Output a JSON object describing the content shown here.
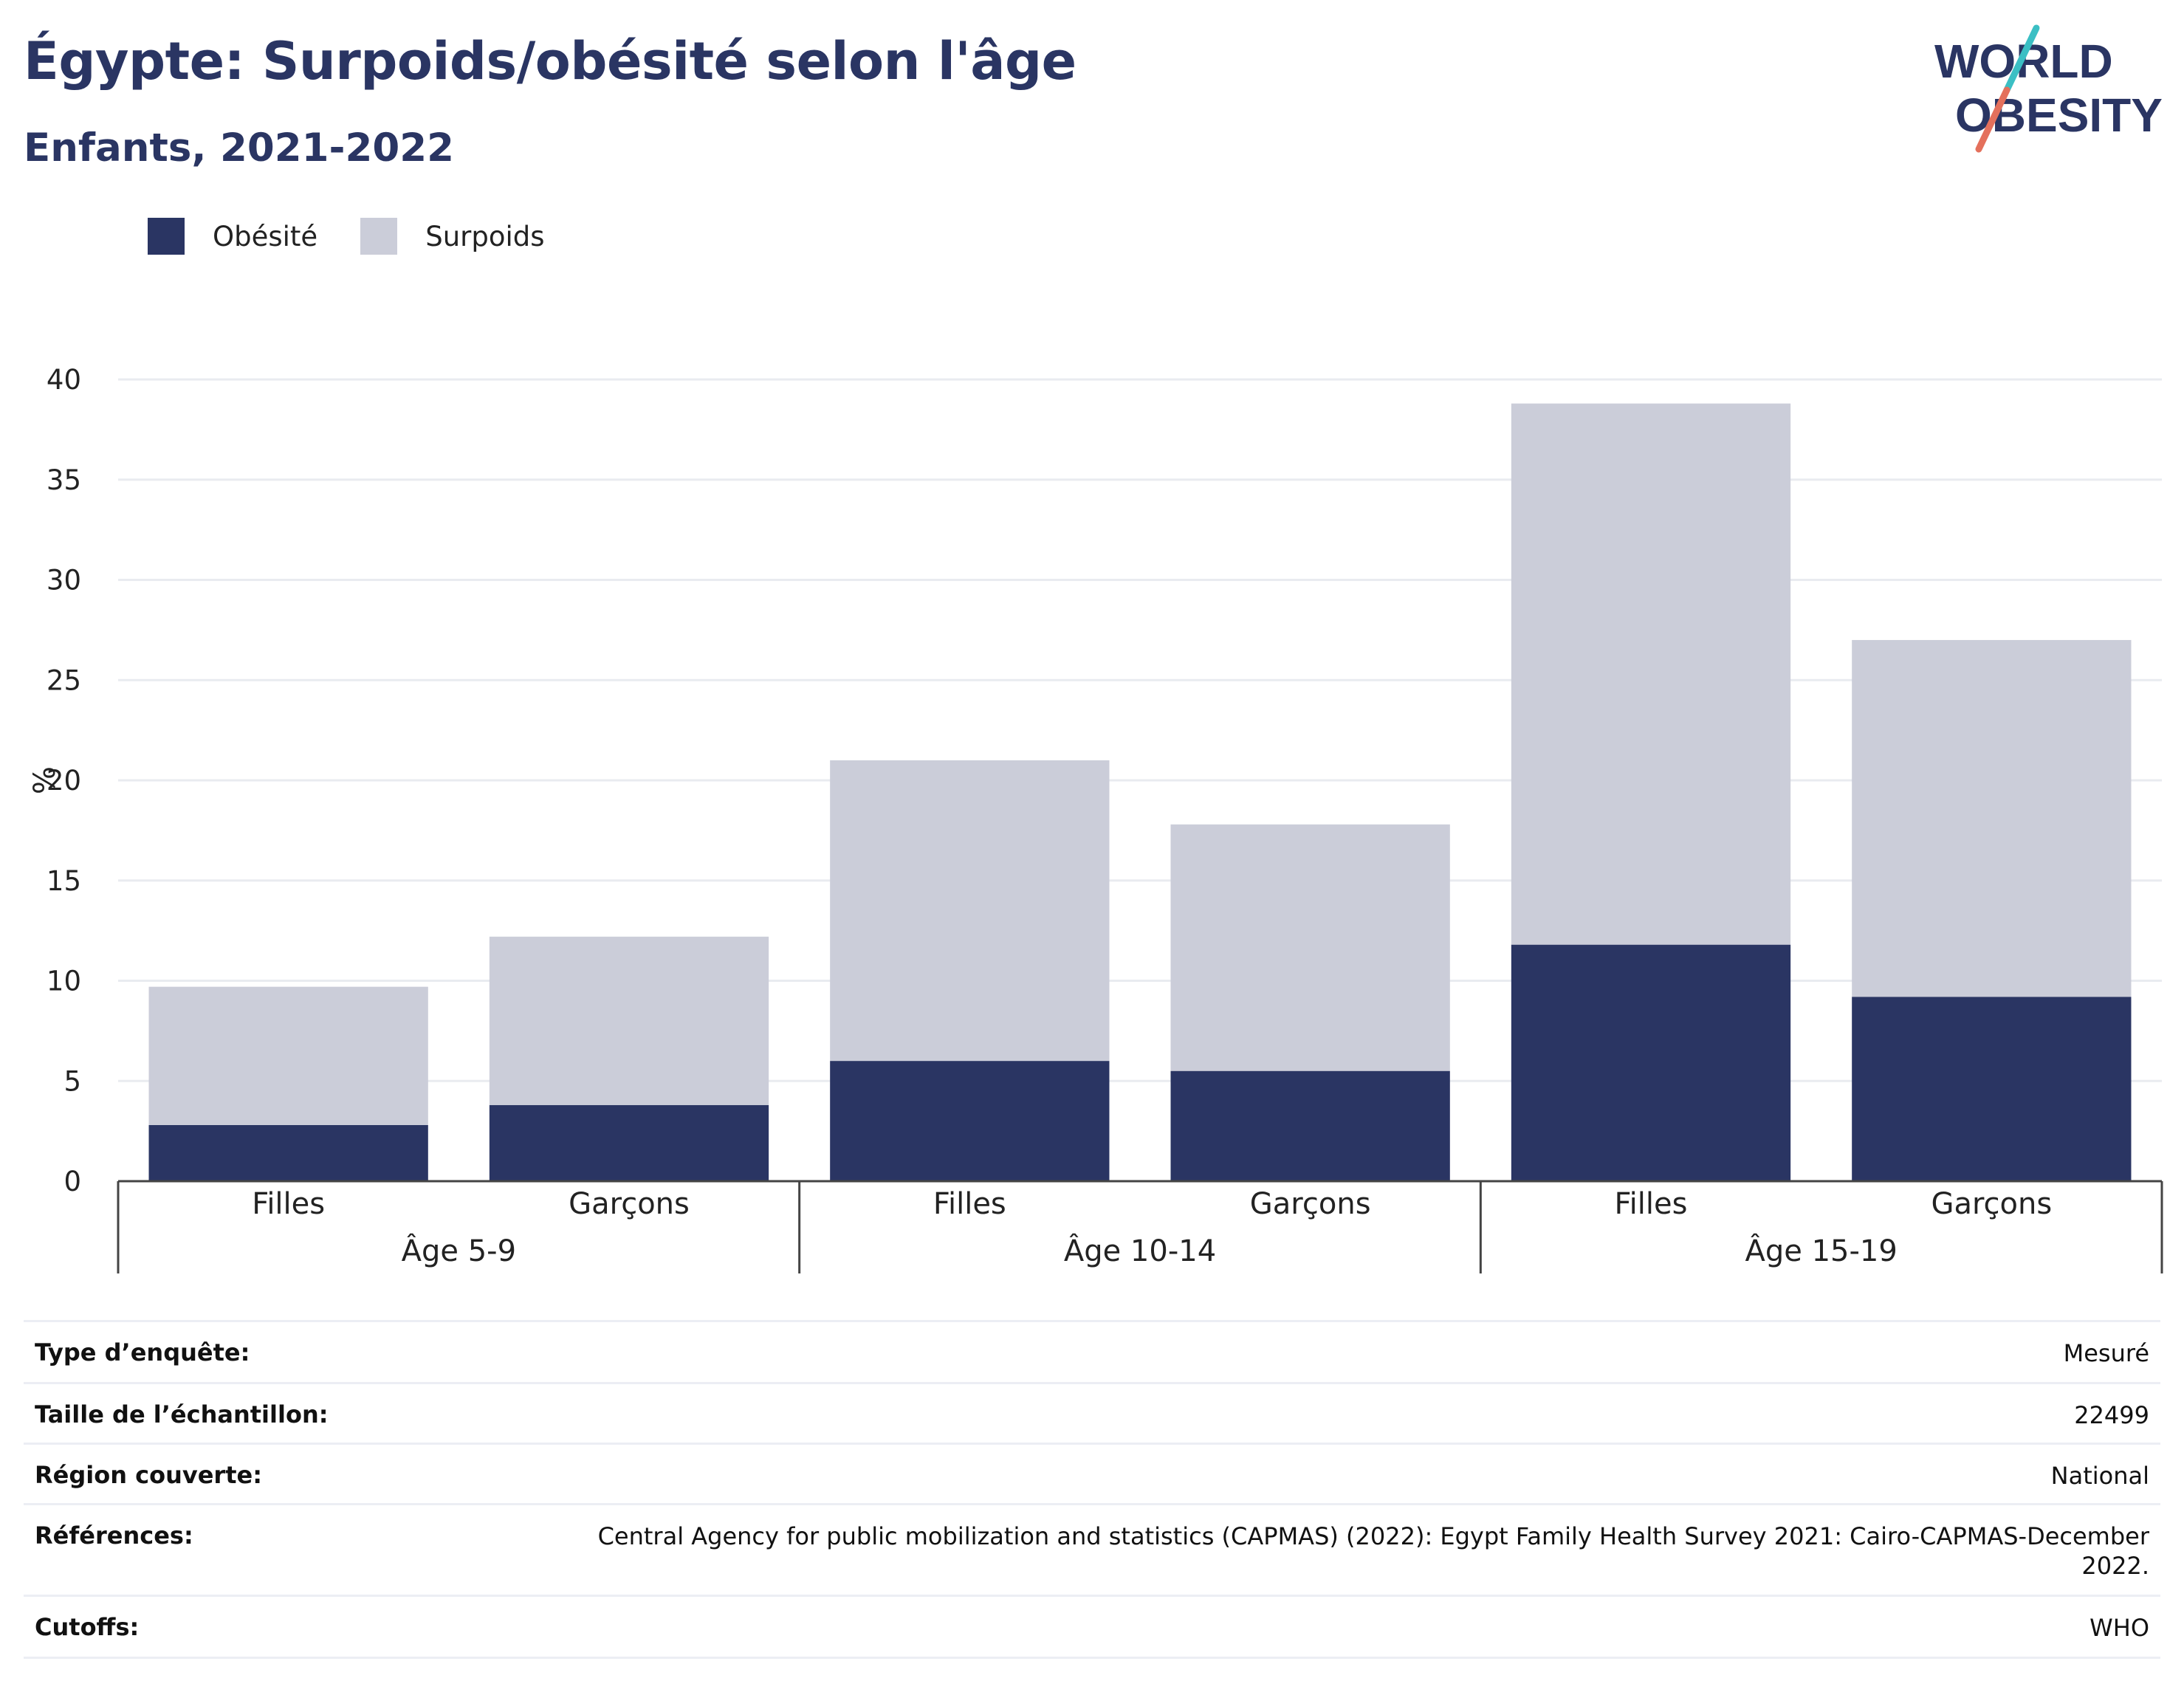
{
  "header": {
    "title": "Égypte: Surpoids/obésité selon l'âge",
    "subtitle": "Enfants, 2021-2022",
    "logo_line1": "WORLD",
    "logo_line2": "OBESITY"
  },
  "colors": {
    "obesity": "#2a3563",
    "overweight": "#cbcdd9",
    "text": "#2a3563",
    "logo_teal": "#3bbfc4",
    "logo_coral": "#e4705c"
  },
  "legend": [
    {
      "label": "Obésité",
      "color": "#2a3563"
    },
    {
      "label": "Surpoids",
      "color": "#cbcdd9"
    }
  ],
  "chart_data": {
    "type": "bar",
    "stacked": true,
    "ylabel": "%",
    "ylim": [
      0,
      40
    ],
    "yticks": [
      0,
      5,
      10,
      15,
      20,
      25,
      30,
      35,
      40
    ],
    "grid": true,
    "legend_position": "top-left",
    "groups": [
      "Âge 5-9",
      "Âge 10-14",
      "Âge 15-19"
    ],
    "categories": [
      "Filles",
      "Garçons",
      "Filles",
      "Garçons",
      "Filles",
      "Garçons"
    ],
    "series": [
      {
        "name": "Obésité",
        "values": [
          2.8,
          3.8,
          6.0,
          5.5,
          11.8,
          9.2
        ]
      },
      {
        "name": "Surpoids",
        "values": [
          6.9,
          8.4,
          15.0,
          12.3,
          27.0,
          17.8
        ]
      }
    ]
  },
  "meta": [
    {
      "key": "Type d’enquête:",
      "value": "Mesuré"
    },
    {
      "key": "Taille de l’échantillon:",
      "value": "22499"
    },
    {
      "key": "Région couverte:",
      "value": "National"
    },
    {
      "key": "Références:",
      "value": "Central Agency for public mobilization and statistics (CAPMAS) (2022): Egypt Family Health Survey 2021: Cairo-CAPMAS-December 2022."
    },
    {
      "key": "Cutoffs:",
      "value": "WHO"
    }
  ]
}
